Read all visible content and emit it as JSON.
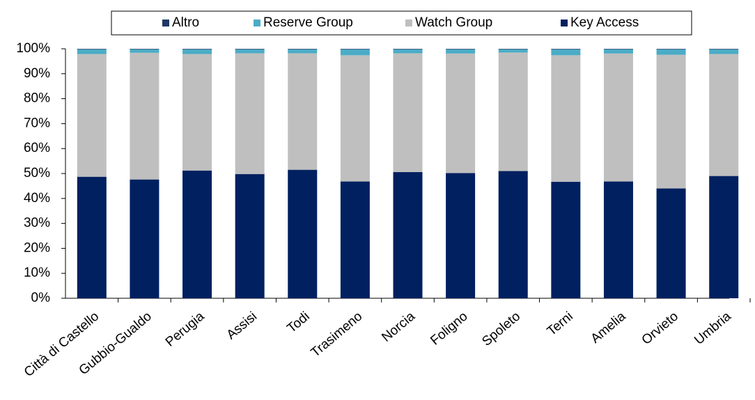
{
  "chart_data": {
    "type": "stacked_bar",
    "categories": [
      "Città di Castello",
      "Gubbio-Gualdo",
      "Perugia",
      "Assisi",
      "Todi",
      "Trasimeno",
      "Norcia",
      "Foligno",
      "Spoleto",
      "Terni",
      "Amelia",
      "Orvieto",
      "Umbria"
    ],
    "series": [
      {
        "name": "Key Access",
        "color": "#002060",
        "values": [
          48.7,
          47.6,
          51.2,
          49.8,
          51.5,
          46.8,
          50.6,
          50.2,
          51.0,
          46.7,
          46.8,
          44.0,
          49.0
        ]
      },
      {
        "name": "Watch Group",
        "color": "#bfbfbf",
        "values": [
          49.2,
          50.8,
          46.7,
          48.4,
          46.7,
          50.6,
          47.6,
          47.9,
          47.5,
          50.7,
          51.3,
          53.6,
          48.9
        ]
      },
      {
        "name": "Reserve Group",
        "color": "#4bacc6",
        "values": [
          1.9,
          1.4,
          1.9,
          1.6,
          1.6,
          2.4,
          1.6,
          1.7,
          1.3,
          2.4,
          1.7,
          2.2,
          1.9
        ]
      },
      {
        "name": "Altro",
        "color": "#1f3864",
        "values": [
          0.2,
          0.2,
          0.2,
          0.2,
          0.2,
          0.2,
          0.2,
          0.2,
          0.2,
          0.2,
          0.2,
          0.2,
          0.2
        ]
      }
    ],
    "ylim": [
      0,
      100
    ],
    "yticks": [
      {
        "value": 0,
        "label": "0%"
      },
      {
        "value": 10,
        "label": "10%"
      },
      {
        "value": 20,
        "label": "20%"
      },
      {
        "value": 30,
        "label": "30%"
      },
      {
        "value": 40,
        "label": "40%"
      },
      {
        "value": 50,
        "label": "50%"
      },
      {
        "value": 60,
        "label": "60%"
      },
      {
        "value": 70,
        "label": "70%"
      },
      {
        "value": 80,
        "label": "80%"
      },
      {
        "value": 90,
        "label": "90%"
      },
      {
        "value": 100,
        "label": "100%"
      }
    ],
    "legend_position": "top"
  }
}
